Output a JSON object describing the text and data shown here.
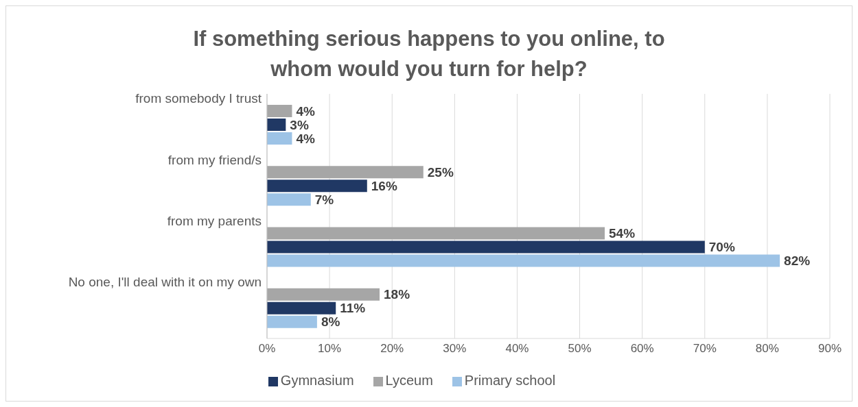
{
  "chart_data": {
    "type": "bar",
    "orientation": "horizontal",
    "title": "If something serious happens to you online, to whom would you turn for help?",
    "categories": [
      "from somebody I trust",
      "from my friend/s",
      "from my parents",
      "No one, I'll deal with it on my own"
    ],
    "series": [
      {
        "name": "Lyceum",
        "color": "#a6a6a6",
        "values": [
          4,
          25,
          54,
          18
        ],
        "value_labels": [
          "4%",
          "25%",
          "54%",
          "18%"
        ]
      },
      {
        "name": "Gymnasium",
        "color": "#203864",
        "values": [
          3,
          16,
          70,
          11
        ],
        "value_labels": [
          "3%",
          "16%",
          "70%",
          "11%"
        ]
      },
      {
        "name": "Primary school",
        "color": "#9dc3e6",
        "values": [
          4,
          7,
          82,
          8
        ],
        "value_labels": [
          "4%",
          "7%",
          "82%",
          "8%"
        ]
      }
    ],
    "xlim": [
      0,
      90
    ],
    "xticks": [
      {
        "value": 0,
        "label": "0%"
      },
      {
        "value": 10,
        "label": "10%"
      },
      {
        "value": 20,
        "label": "20%"
      },
      {
        "value": 30,
        "label": "30%"
      },
      {
        "value": 40,
        "label": "40%"
      },
      {
        "value": 50,
        "label": "50%"
      },
      {
        "value": 60,
        "label": "60%"
      },
      {
        "value": 70,
        "label": "70%"
      },
      {
        "value": 80,
        "label": "80%"
      },
      {
        "value": 90,
        "label": "90%"
      }
    ],
    "grid": "x",
    "legend": "bottom"
  }
}
